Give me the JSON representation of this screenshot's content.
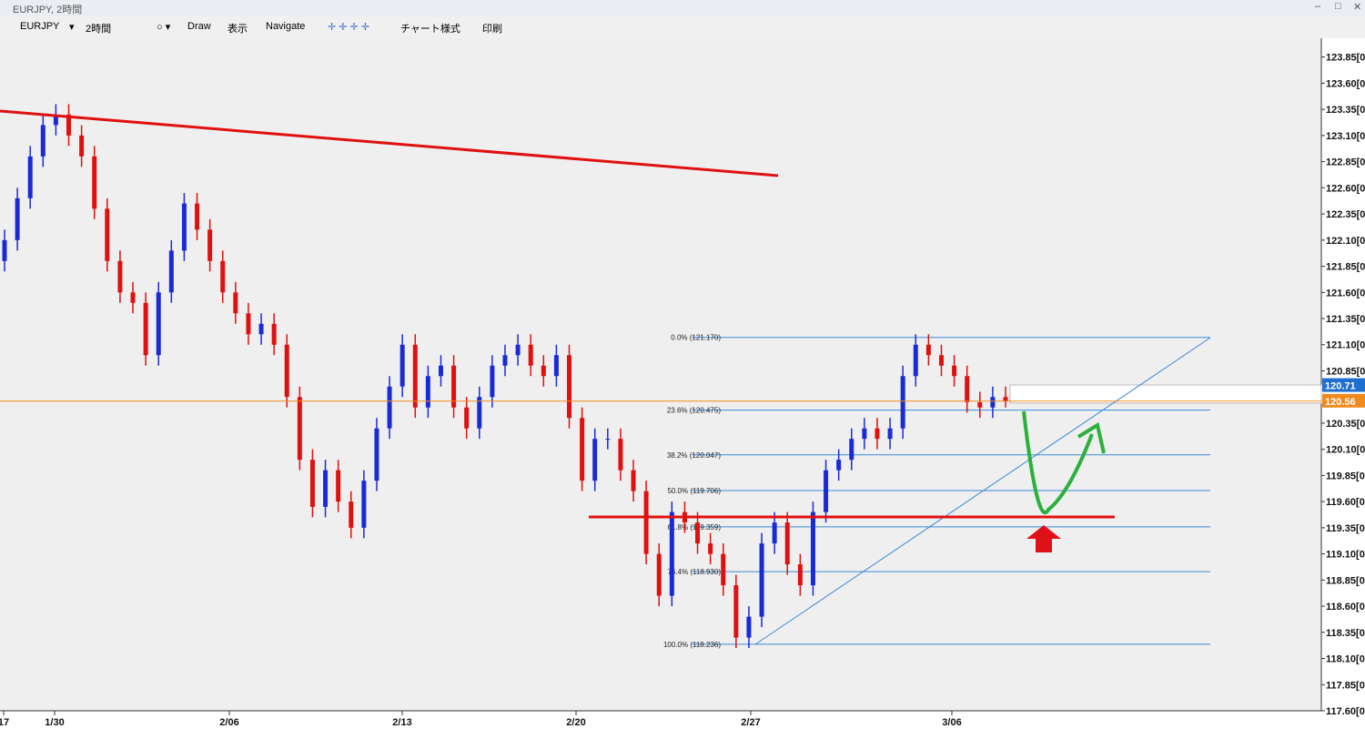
{
  "window": {
    "title": "EURJPY, 2時間"
  },
  "toolbar": {
    "symbol": "EURJPY",
    "timeframe": "2時間",
    "items": [
      "Draw",
      "表示",
      "Navigate",
      "チャート様式",
      "印刷"
    ]
  },
  "chart_data": {
    "type": "candlestick",
    "ohlc": [
      [
        121.9,
        122.2,
        121.8,
        122.1
      ],
      [
        122.1,
        122.6,
        122.0,
        122.5
      ],
      [
        122.5,
        123.0,
        122.4,
        122.9
      ],
      [
        122.9,
        123.3,
        122.8,
        123.2
      ],
      [
        123.2,
        123.4,
        123.1,
        123.3
      ],
      [
        123.3,
        123.4,
        123.0,
        123.1
      ],
      [
        123.1,
        123.2,
        122.8,
        122.9
      ],
      [
        122.9,
        123.0,
        122.3,
        122.4
      ],
      [
        122.4,
        122.5,
        121.8,
        121.9
      ],
      [
        121.9,
        122.0,
        121.5,
        121.6
      ],
      [
        121.6,
        121.7,
        121.4,
        121.5
      ],
      [
        121.5,
        121.6,
        120.9,
        121.0
      ],
      [
        121.0,
        121.7,
        120.9,
        121.6
      ],
      [
        121.6,
        122.1,
        121.5,
        122.0
      ],
      [
        122.0,
        122.55,
        121.9,
        122.45
      ],
      [
        122.45,
        122.55,
        122.1,
        122.2
      ],
      [
        122.2,
        122.3,
        121.8,
        121.9
      ],
      [
        121.9,
        122.0,
        121.5,
        121.6
      ],
      [
        121.6,
        121.7,
        121.3,
        121.4
      ],
      [
        121.4,
        121.5,
        121.1,
        121.2
      ],
      [
        121.2,
        121.4,
        121.1,
        121.3
      ],
      [
        121.3,
        121.4,
        121.0,
        121.1
      ],
      [
        121.1,
        121.2,
        120.5,
        120.6
      ],
      [
        120.6,
        120.7,
        119.9,
        120.0
      ],
      [
        120.0,
        120.1,
        119.45,
        119.55
      ],
      [
        119.55,
        120.0,
        119.45,
        119.9
      ],
      [
        119.9,
        120.0,
        119.5,
        119.6
      ],
      [
        119.6,
        119.7,
        119.25,
        119.35
      ],
      [
        119.35,
        119.9,
        119.25,
        119.8
      ],
      [
        119.8,
        120.4,
        119.7,
        120.3
      ],
      [
        120.3,
        120.8,
        120.2,
        120.7
      ],
      [
        120.7,
        121.2,
        120.6,
        121.1
      ],
      [
        121.1,
        121.2,
        120.4,
        120.5
      ],
      [
        120.5,
        120.9,
        120.4,
        120.8
      ],
      [
        120.8,
        121.0,
        120.7,
        120.9
      ],
      [
        120.9,
        121.0,
        120.4,
        120.5
      ],
      [
        120.5,
        120.6,
        120.2,
        120.3
      ],
      [
        120.3,
        120.7,
        120.2,
        120.6
      ],
      [
        120.6,
        121.0,
        120.5,
        120.9
      ],
      [
        120.9,
        121.1,
        120.8,
        121.0
      ],
      [
        121.0,
        121.2,
        120.9,
        121.1
      ],
      [
        121.1,
        121.2,
        120.8,
        120.9
      ],
      [
        120.9,
        121.0,
        120.7,
        120.8
      ],
      [
        120.8,
        121.1,
        120.7,
        121.0
      ],
      [
        121.0,
        121.1,
        120.3,
        120.4
      ],
      [
        120.4,
        120.5,
        119.7,
        119.8
      ],
      [
        119.8,
        120.3,
        119.7,
        120.2
      ],
      [
        120.2,
        120.3,
        120.1,
        120.2
      ],
      [
        120.2,
        120.3,
        119.8,
        119.9
      ],
      [
        119.9,
        120.0,
        119.6,
        119.7
      ],
      [
        119.7,
        119.8,
        119.0,
        119.1
      ],
      [
        119.1,
        119.2,
        118.6,
        118.7
      ],
      [
        118.7,
        119.6,
        118.6,
        119.5
      ],
      [
        119.5,
        119.6,
        119.3,
        119.4
      ],
      [
        119.4,
        119.5,
        119.1,
        119.2
      ],
      [
        119.2,
        119.3,
        119.0,
        119.1
      ],
      [
        119.1,
        119.2,
        118.7,
        118.8
      ],
      [
        118.8,
        118.9,
        118.2,
        118.3
      ],
      [
        118.3,
        118.6,
        118.2,
        118.5
      ],
      [
        118.5,
        119.3,
        118.4,
        119.2
      ],
      [
        119.2,
        119.5,
        119.1,
        119.4
      ],
      [
        119.4,
        119.5,
        118.9,
        119.0
      ],
      [
        119.0,
        119.1,
        118.7,
        118.8
      ],
      [
        118.8,
        119.6,
        118.7,
        119.5
      ],
      [
        119.5,
        120.0,
        119.4,
        119.9
      ],
      [
        119.9,
        120.1,
        119.8,
        120.0
      ],
      [
        120.0,
        120.3,
        119.9,
        120.2
      ],
      [
        120.2,
        120.4,
        120.1,
        120.3
      ],
      [
        120.3,
        120.4,
        120.1,
        120.2
      ],
      [
        120.2,
        120.4,
        120.1,
        120.3
      ],
      [
        120.3,
        120.9,
        120.2,
        120.8
      ],
      [
        120.8,
        121.2,
        120.7,
        121.1
      ],
      [
        121.1,
        121.2,
        120.9,
        121.0
      ],
      [
        121.0,
        121.1,
        120.8,
        120.9
      ],
      [
        120.9,
        121.0,
        120.7,
        120.8
      ],
      [
        120.8,
        120.9,
        120.45,
        120.55
      ],
      [
        120.55,
        120.65,
        120.4,
        120.5
      ],
      [
        120.5,
        120.7,
        120.4,
        120.6
      ],
      [
        120.6,
        120.7,
        120.5,
        120.56
      ]
    ],
    "up_color": "#1a2bd6",
    "down_color": "#e01010",
    "x_labels": [
      "17",
      "1/30",
      "2/06",
      "2/13",
      "2/20",
      "2/27",
      "3/06"
    ],
    "ylim": [
      117.6,
      124.03
    ],
    "yticks": [
      {
        "value": 123.85,
        "label": "123.85[0"
      },
      {
        "value": 123.6,
        "label": "123.60[0"
      },
      {
        "value": 123.35,
        "label": "123.35[0"
      },
      {
        "value": 123.1,
        "label": "123.10[0"
      },
      {
        "value": 122.85,
        "label": "122.85[0"
      },
      {
        "value": 122.6,
        "label": "122.60[0"
      },
      {
        "value": 122.35,
        "label": "122.35[0"
      },
      {
        "value": 122.1,
        "label": "122.10[0"
      },
      {
        "value": 121.85,
        "label": "121.85[0"
      },
      {
        "value": 121.6,
        "label": "121.60[0"
      },
      {
        "value": 121.35,
        "label": "121.35[0"
      },
      {
        "value": 121.1,
        "label": "121.10[0"
      },
      {
        "value": 120.85,
        "label": "120.85[0"
      },
      {
        "value": 120.35,
        "label": "120.35[0"
      },
      {
        "value": 120.1,
        "label": "120.10[0"
      },
      {
        "value": 119.85,
        "label": "119.85[0"
      },
      {
        "value": 119.6,
        "label": "119.60[0"
      },
      {
        "value": 119.35,
        "label": "119.35[0"
      },
      {
        "value": 119.1,
        "label": "119.10[0"
      },
      {
        "value": 118.85,
        "label": "118.85[0"
      },
      {
        "value": 118.6,
        "label": "118.60[0"
      },
      {
        "value": 118.35,
        "label": "118.35[0"
      },
      {
        "value": 118.1,
        "label": "118.10[0"
      },
      {
        "value": 117.85,
        "label": "117.85[0"
      },
      {
        "value": 117.6,
        "label": "117.60[0"
      }
    ],
    "price_tags": [
      {
        "value": 120.71,
        "color": "#1e6fd0"
      },
      {
        "value": 120.56,
        "color": "#f08a1c"
      }
    ],
    "fibonacci": [
      {
        "label": "0.0% (121.170)",
        "value": 121.17
      },
      {
        "label": "23.6% (120.475)",
        "value": 120.475
      },
      {
        "label": "38.2% (120.047)",
        "value": 120.047
      },
      {
        "label": "50.0% (119.706)",
        "value": 119.706
      },
      {
        "label": "61.8% (119.359)",
        "value": 119.359
      },
      {
        "label": "76.4% (118.930)",
        "value": 118.93
      },
      {
        "label": "100.0% (118.236)",
        "value": 118.236
      }
    ]
  }
}
